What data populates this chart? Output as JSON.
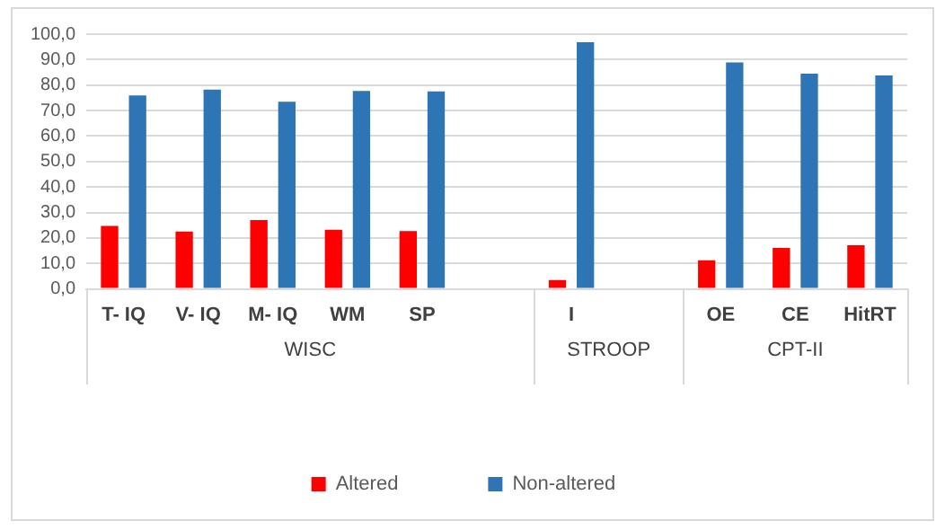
{
  "chart_data": {
    "type": "bar",
    "categories": [
      "T- IQ",
      "V- IQ",
      "M- IQ",
      "WM",
      "SP",
      null,
      "I",
      null,
      "OE",
      "CE",
      "HitRT"
    ],
    "series": [
      {
        "name": "Altered",
        "color": "#ff0000",
        "values": [
          24.7,
          22.5,
          27.0,
          23.2,
          22.7,
          null,
          3.5,
          null,
          11.2,
          16.1,
          17.1
        ]
      },
      {
        "name": "Non-altered",
        "color": "#2e75b6",
        "values": [
          75.9,
          78.2,
          73.5,
          77.7,
          77.5,
          null,
          96.8,
          null,
          88.9,
          84.5,
          83.8
        ]
      }
    ],
    "annotations": [
      "WISC",
      "STROOP",
      "CPT-II"
    ],
    "ylim": [
      0,
      100
    ],
    "yticks": [
      {
        "value": 0,
        "label": "0,0"
      },
      {
        "value": 10,
        "label": "10,0"
      },
      {
        "value": 20,
        "label": "20,0"
      },
      {
        "value": 30,
        "label": "30,0"
      },
      {
        "value": 40,
        "label": "40,0"
      },
      {
        "value": 50,
        "label": "50,0"
      },
      {
        "value": 60,
        "label": "60,0"
      },
      {
        "value": 70,
        "label": "70,0"
      },
      {
        "value": 80,
        "label": "80,0"
      },
      {
        "value": 90,
        "label": "90,0"
      },
      {
        "value": 100,
        "label": "100,0"
      }
    ],
    "grid": "y",
    "legend": "bottom"
  }
}
